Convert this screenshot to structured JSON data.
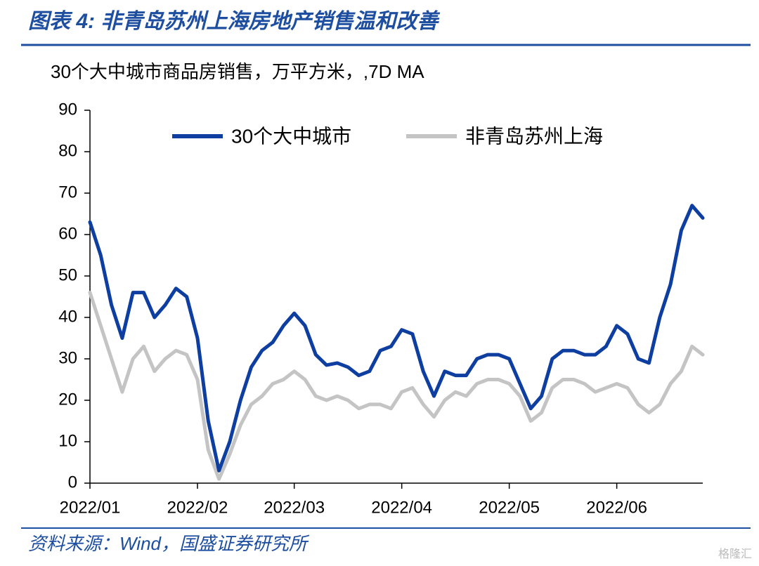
{
  "chart_data": {
    "type": "line",
    "title": "图表 4:  非青岛苏州上海房地产销售温和改善",
    "subtitle": "30个大中城市商品房销售，万平方米，,7D MA",
    "source": "资料来源：Wind，国盛证券研究所",
    "watermark": "格隆汇",
    "categories": [
      "2022/01",
      null,
      null,
      null,
      null,
      null,
      null,
      null,
      null,
      null,
      "2022/02",
      null,
      null,
      null,
      null,
      null,
      null,
      null,
      null,
      "2022/03",
      null,
      null,
      null,
      null,
      null,
      null,
      null,
      null,
      null,
      "2022/04",
      null,
      null,
      null,
      null,
      null,
      null,
      null,
      null,
      null,
      "2022/05",
      null,
      null,
      null,
      null,
      null,
      null,
      null,
      null,
      null,
      "2022/06",
      null,
      null,
      null,
      null,
      null,
      null,
      null,
      null
    ],
    "series": [
      {
        "name": "30个大中城市",
        "color": "#0e3fa0",
        "values": [
          63,
          55,
          43,
          35,
          46,
          46,
          40,
          43,
          47,
          45,
          35,
          15,
          3,
          10,
          20,
          28,
          32,
          34,
          38,
          41,
          38,
          31,
          28.5,
          29,
          28,
          26,
          27,
          32,
          33,
          37,
          36,
          27,
          21,
          27,
          26,
          26,
          30,
          31,
          31,
          30,
          24,
          18,
          21,
          30,
          32,
          32,
          31,
          31,
          33,
          38,
          36,
          30,
          29,
          40,
          48,
          61,
          67,
          64
        ]
      },
      {
        "name": "非青岛苏州上海",
        "color": "#c4c4c4",
        "values": [
          46,
          38,
          30,
          22,
          30,
          33,
          27,
          30,
          32,
          31,
          25,
          8,
          1,
          7,
          14,
          19,
          21,
          24,
          25,
          27,
          25,
          21,
          20,
          21,
          20,
          18,
          19,
          19,
          18,
          22,
          23,
          19,
          16,
          20,
          22,
          21,
          24,
          25,
          25,
          24,
          21,
          15,
          17,
          23,
          25,
          25,
          24,
          22,
          23,
          24,
          23,
          19,
          17,
          19,
          24,
          27,
          33,
          31
        ]
      }
    ],
    "ylim": [
      0,
      90
    ],
    "yticks": [
      0,
      10,
      20,
      30,
      40,
      50,
      60,
      70,
      80,
      90
    ],
    "legend": "top"
  }
}
